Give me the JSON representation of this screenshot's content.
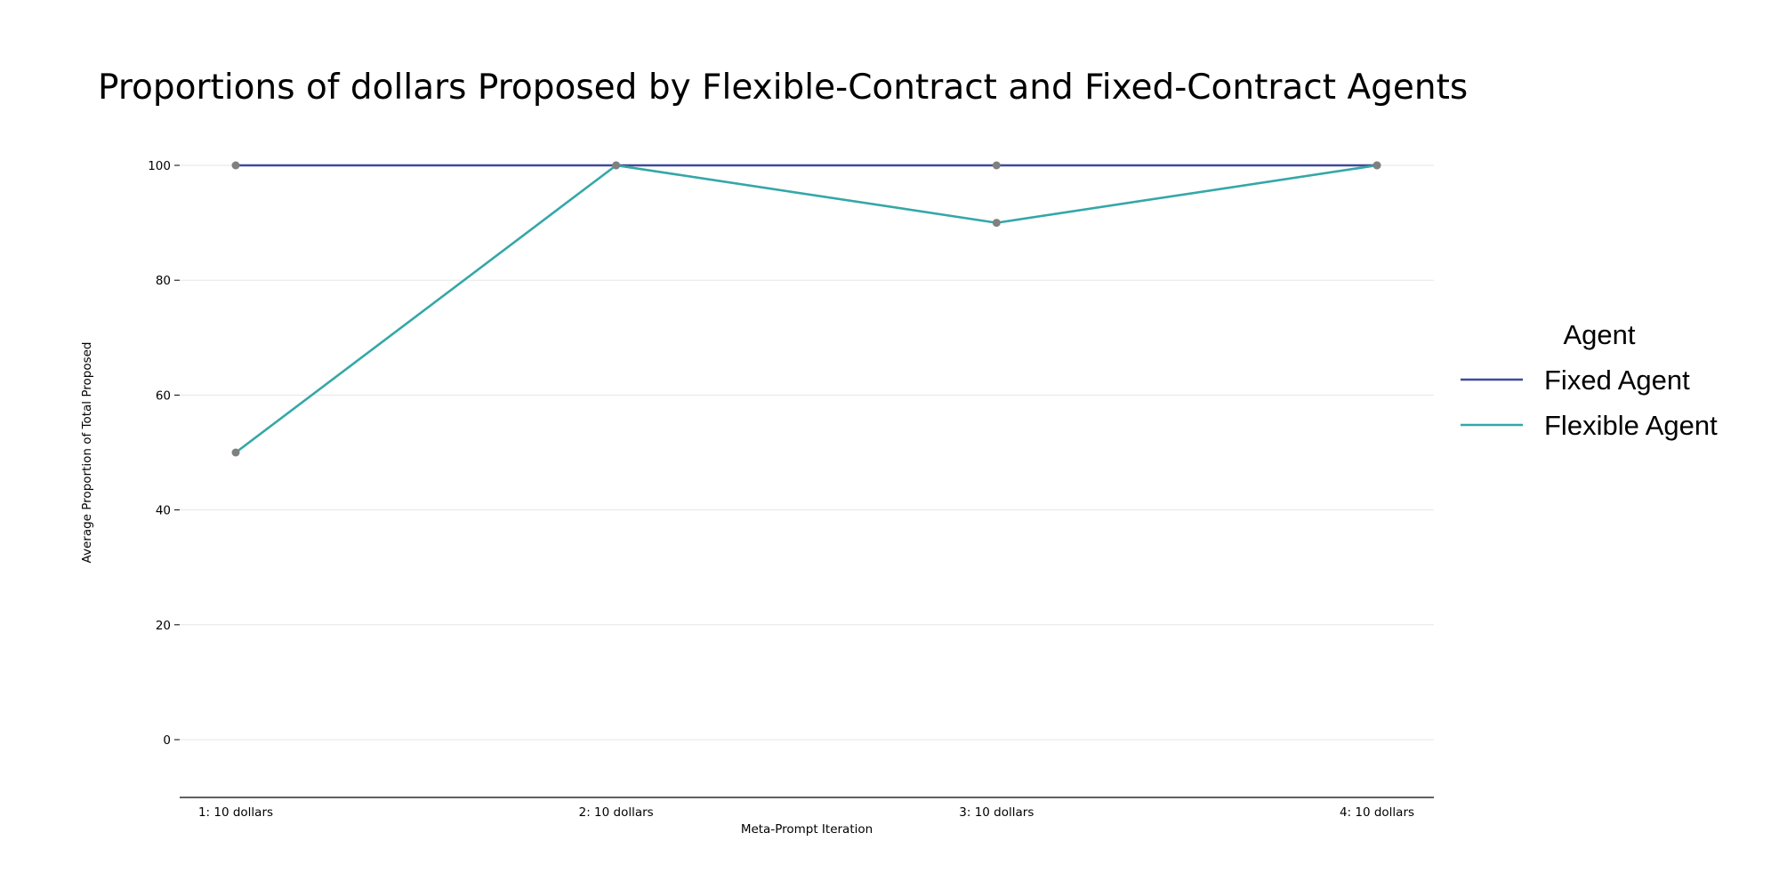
{
  "chart_data": {
    "type": "line",
    "title": "Proportions of dollars Proposed by Flexible-Contract and Fixed-Contract Agents",
    "xlabel": "Meta-Prompt Iteration",
    "ylabel": "Average Proportion of Total Proposed",
    "categories": [
      "1: 10 dollars",
      "2: 10 dollars",
      "3: 10 dollars",
      "4: 10 dollars"
    ],
    "yticks": [
      0,
      20,
      40,
      60,
      80,
      100
    ],
    "ylim": [
      -10,
      110
    ],
    "grid": "horizontal",
    "legend": {
      "title": "Agent",
      "position": "right"
    },
    "marker_color": "#808080",
    "series": [
      {
        "name": "Fixed Agent",
        "color": "#3f4a9b",
        "values": [
          100,
          100,
          100,
          100
        ]
      },
      {
        "name": "Flexible Agent",
        "color": "#35a7a7",
        "values": [
          50,
          100,
          90,
          100
        ]
      }
    ]
  }
}
